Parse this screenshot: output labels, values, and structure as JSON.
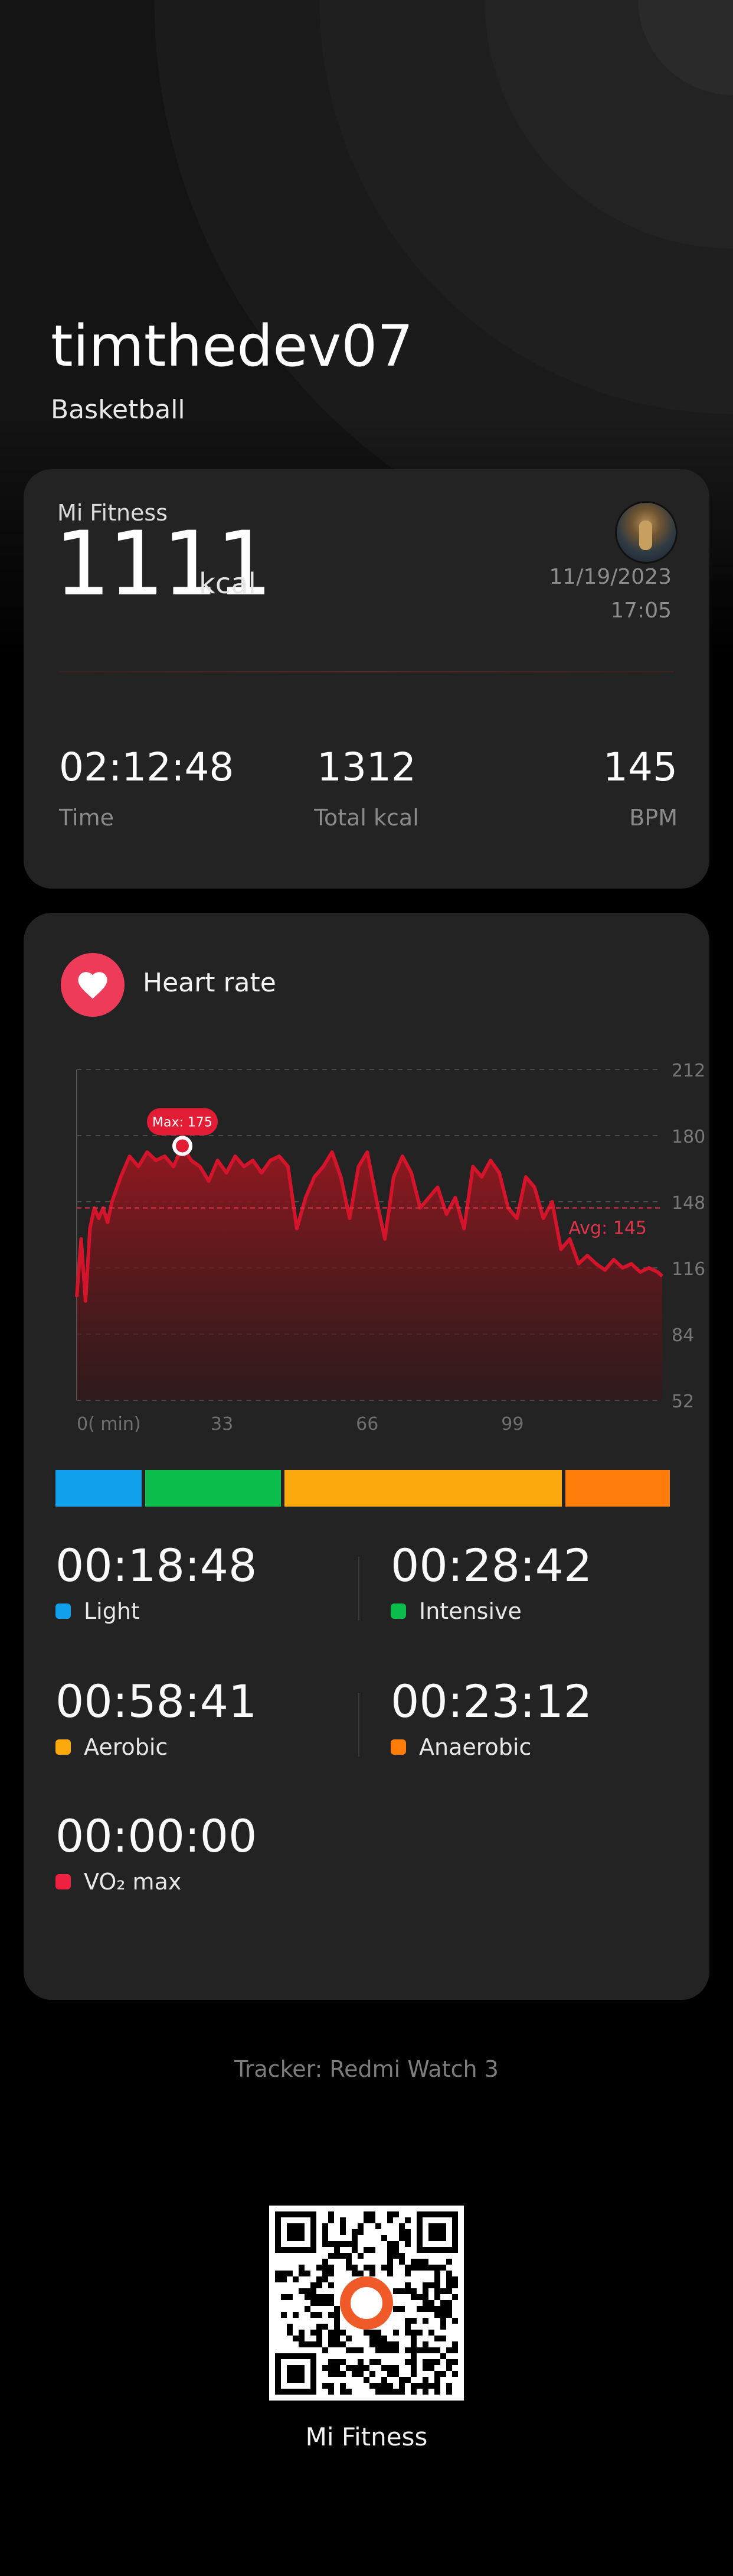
{
  "header": {
    "username": "timthedev07",
    "sport": "Basketball"
  },
  "summary": {
    "source": "Mi Fitness",
    "calories": "1111",
    "calories_unit": "kcal",
    "date": "11/19/2023",
    "time": "17:05",
    "stats": [
      {
        "value": "02:12:48",
        "label": "Time"
      },
      {
        "value": "1312",
        "label": "Total kcal"
      },
      {
        "value": "145",
        "label": "BPM"
      }
    ]
  },
  "heart_rate": {
    "title": "Heart rate",
    "max_label": "Max: 175",
    "avg_label": "Avg: 145",
    "colors": {
      "line": "#d4142a",
      "accent": "#ef3b5a"
    }
  },
  "chart_data": {
    "type": "area",
    "xlabel": "min",
    "x_ticks": [
      "0( min)",
      "33",
      "66",
      "99"
    ],
    "y_ticks": [
      "212",
      "180",
      "148",
      "116",
      "84",
      "52"
    ],
    "ylim": [
      52,
      212
    ],
    "xlim": [
      0,
      133
    ],
    "grid": true,
    "max": 175,
    "avg": 145,
    "series": [
      {
        "x": [
          0,
          1,
          2,
          3,
          4,
          5,
          6,
          7,
          8,
          10,
          12,
          14,
          16,
          18,
          20,
          22,
          24,
          26,
          28,
          30,
          32,
          34,
          36,
          38,
          40,
          42,
          44,
          46,
          48,
          50,
          52,
          54,
          56,
          58,
          60,
          62,
          64,
          66,
          68,
          70,
          72,
          74,
          76,
          78,
          80,
          82,
          84,
          86,
          88,
          90,
          92,
          94,
          96,
          98,
          100,
          102,
          104,
          106,
          108,
          110,
          112,
          114,
          116,
          118,
          120,
          122,
          124,
          126,
          128,
          130,
          132,
          133
        ],
        "y": [
          102,
          130,
          100,
          135,
          145,
          140,
          145,
          138,
          148,
          160,
          170,
          165,
          172,
          168,
          170,
          165,
          175,
          168,
          165,
          158,
          168,
          162,
          170,
          165,
          168,
          162,
          168,
          170,
          165,
          135,
          150,
          160,
          165,
          172,
          160,
          140,
          165,
          172,
          150,
          130,
          160,
          170,
          162,
          145,
          150,
          155,
          142,
          150,
          135,
          165,
          160,
          168,
          162,
          145,
          140,
          160,
          155,
          140,
          148,
          125,
          130,
          118,
          122,
          118,
          115,
          120,
          116,
          118,
          114,
          116,
          114,
          112
        ]
      }
    ]
  },
  "zones": {
    "bar_fractions": [
      0.14,
      0.22,
      0.45,
      0.17
    ],
    "items": [
      {
        "time": "00:18:48",
        "label": "Light",
        "color": "#10a0ec"
      },
      {
        "time": "00:28:42",
        "label": "Intensive",
        "color": "#0bbd4a"
      },
      {
        "time": "00:58:41",
        "label": "Aerobic",
        "color": "#fba90c"
      },
      {
        "time": "00:23:12",
        "label": "Anaerobic",
        "color": "#fd7c0a"
      },
      {
        "time": "00:00:00",
        "label": "VO₂ max",
        "color": "#ef2140"
      }
    ]
  },
  "footer": {
    "tracker": "Tracker: Redmi Watch 3",
    "app_name": "Mi Fitness"
  }
}
